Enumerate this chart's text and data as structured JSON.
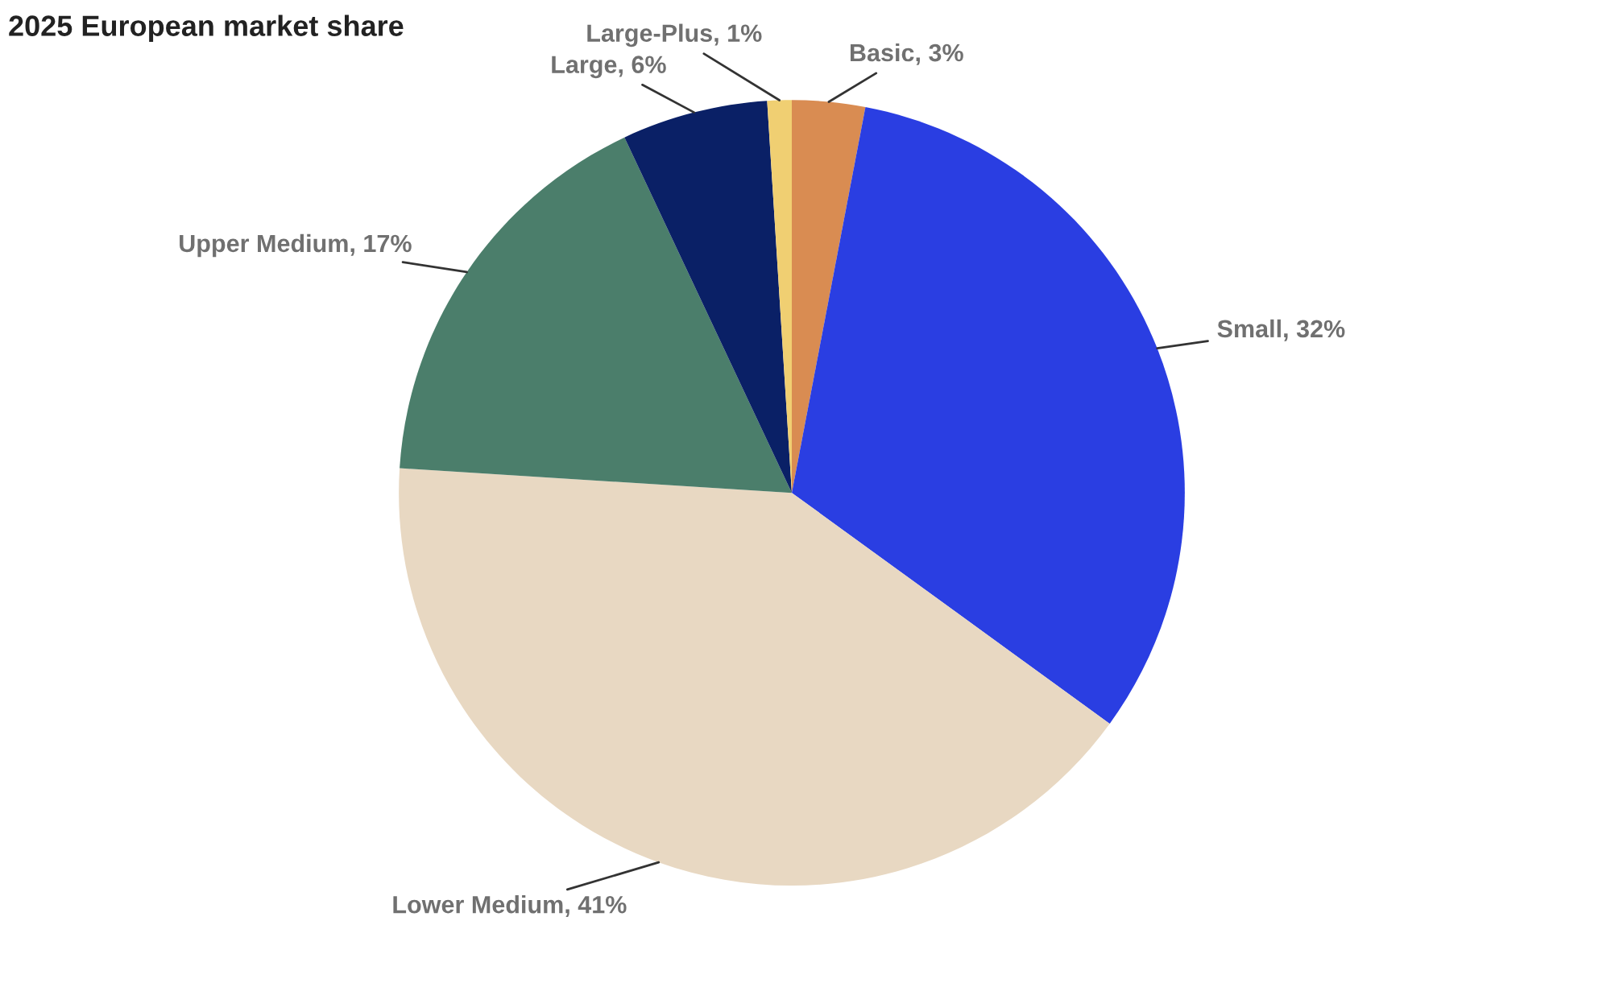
{
  "chart_data": {
    "type": "pie",
    "title": "2025 European market share",
    "categories": [
      "Basic",
      "Small",
      "Lower Medium",
      "Upper Medium",
      "Large",
      "Large-Plus"
    ],
    "values": [
      3,
      32,
      41,
      17,
      6,
      1
    ],
    "value_labels": [
      "3%",
      "32%",
      "41%",
      "17%",
      "6%",
      "1%"
    ],
    "colors": [
      "#d98c52",
      "#2a3ee2",
      "#e8d8c2",
      "#4b7e6b",
      "#0a2066",
      "#f0cf72"
    ],
    "legend": false
  }
}
